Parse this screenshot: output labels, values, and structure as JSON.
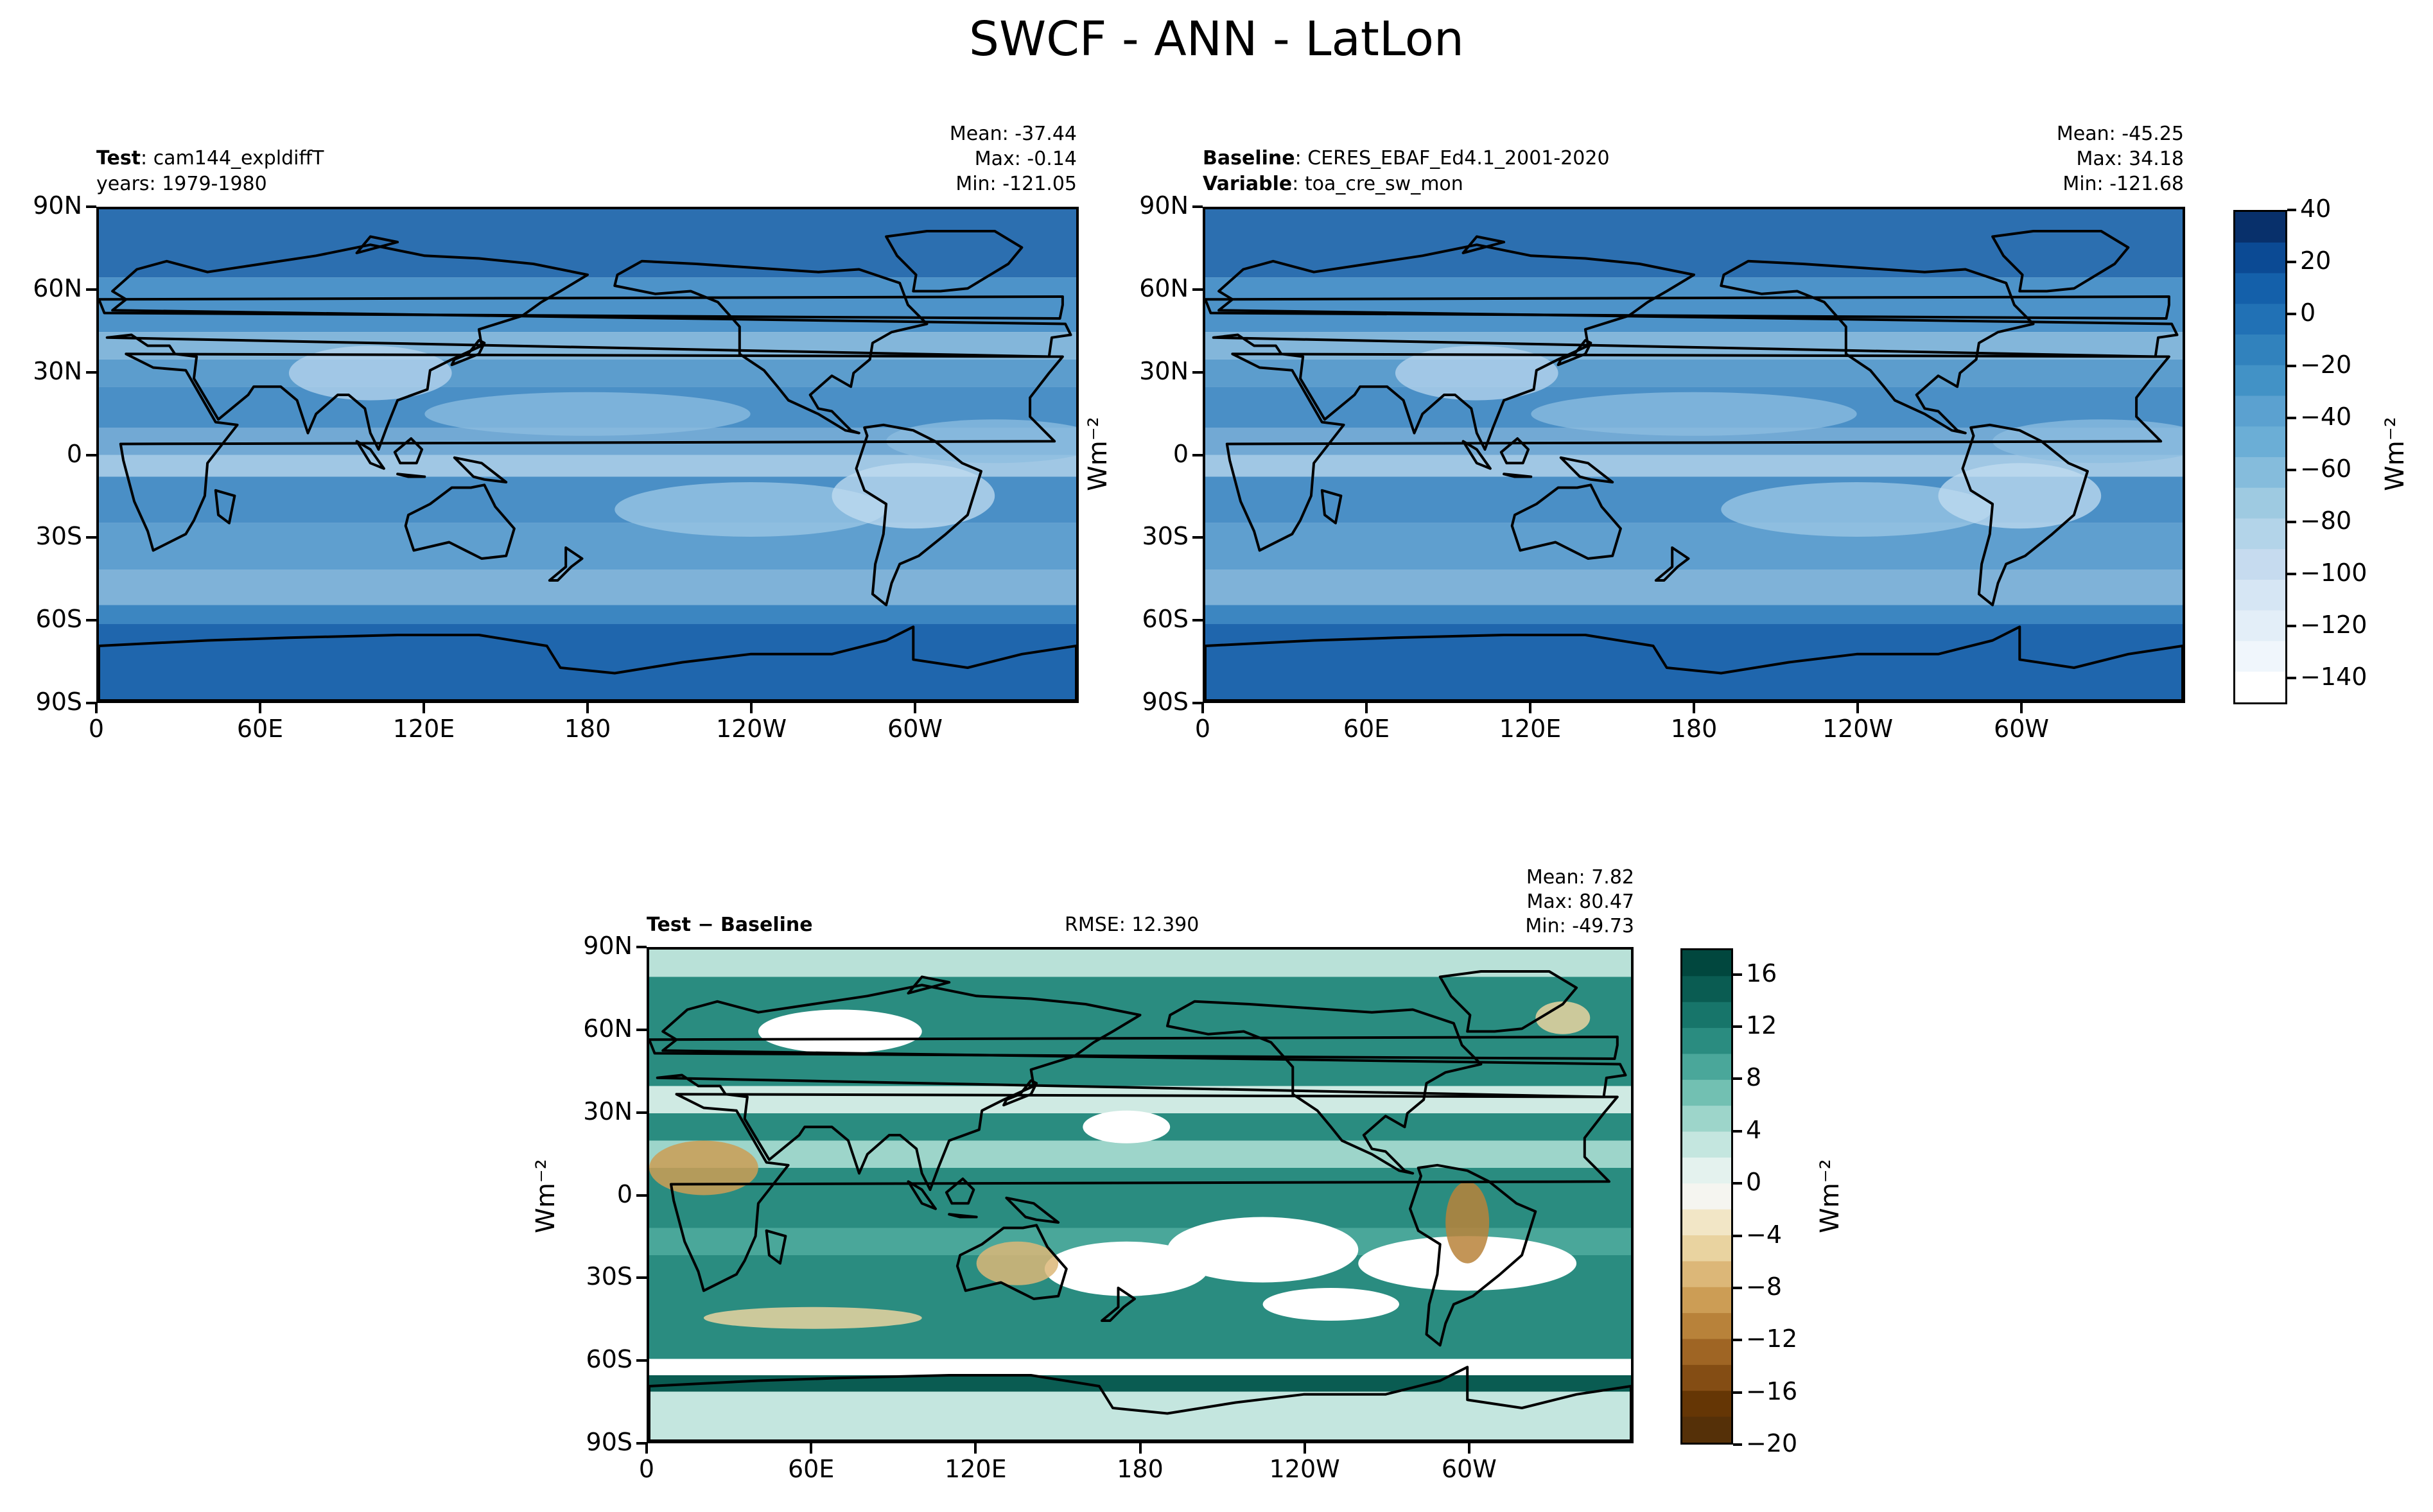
{
  "title": "SWCF - ANN - LatLon",
  "unit_label": "Wm⁻²",
  "x_ticks": [
    "0",
    "60E",
    "120E",
    "180",
    "120W",
    "60W"
  ],
  "y_ticks": [
    "90N",
    "60N",
    "30N",
    "0",
    "30S",
    "60S",
    "90S"
  ],
  "panels": {
    "test": {
      "label_bold": "Test",
      "label_value": "cam144_expldiffT",
      "line2": "years: 1979-1980",
      "mean": "Mean: -37.44",
      "max": "Max: -0.14",
      "min": "Min: -121.05"
    },
    "baseline": {
      "label_bold": "Baseline",
      "label_value": "CERES_EBAF_Ed4.1_2001-2020",
      "line2_bold": "Variable",
      "line2_value": "toa_cre_sw_mon",
      "mean": "Mean: -45.25",
      "max": "Max: 34.18",
      "min": "Min: -121.68"
    },
    "diff": {
      "label": "Test − Baseline",
      "rmse": "RMSE: 12.390",
      "mean": "Mean:  7.82",
      "max": "Max: 80.47",
      "min": "Min: -49.73"
    }
  },
  "colorbar_top": {
    "ticks": [
      "40",
      "20",
      "0",
      "−20",
      "−40",
      "−60",
      "−80",
      "−100",
      "−120",
      "−140"
    ],
    "colors": [
      "#08306b",
      "#0b4a94",
      "#1460aa",
      "#2171b5",
      "#3182bd",
      "#4292c6",
      "#5ba1d0",
      "#6baed6",
      "#85bcdc",
      "#9ecae1",
      "#b3d4e9",
      "#c6dbef",
      "#d6e6f4",
      "#e3eef8",
      "#f0f6fc",
      "#ffffff"
    ]
  },
  "colorbar_diff": {
    "ticks": [
      "16",
      "12",
      "8",
      "4",
      "0",
      "−4",
      "−8",
      "−12",
      "−16",
      "−20"
    ],
    "colors": [
      "#01473e",
      "#0a5c52",
      "#17756a",
      "#2a8c80",
      "#4aa79a",
      "#72c0b2",
      "#9dd5ca",
      "#c4e6df",
      "#e4f2ee",
      "#f5f5f0",
      "#f2e6c6",
      "#e9d3a0",
      "#dcb778",
      "#cc9d55",
      "#b8823a",
      "#9f6524",
      "#844d14",
      "#653605",
      "#553008"
    ]
  },
  "chart_data": [
    {
      "type": "heatmap",
      "title": "Test: cam144_expldiffT",
      "subtitle": "years: 1979-1980",
      "xlabel": "",
      "ylabel": "",
      "x_ticks": [
        "0",
        "60E",
        "120E",
        "180",
        "120W",
        "60W"
      ],
      "y_ticks": [
        "90N",
        "60N",
        "30N",
        "0",
        "30S",
        "60S",
        "90S"
      ],
      "color_range": [
        -150,
        40
      ],
      "stats": {
        "mean": -37.44,
        "max": -0.14,
        "min": -121.05
      },
      "colormap": "Blues (reversed)"
    },
    {
      "type": "heatmap",
      "title": "Baseline: CERES_EBAF_Ed4.1_2001-2020",
      "subtitle": "Variable: toa_cre_sw_mon",
      "xlabel": "",
      "ylabel": "Wm⁻²",
      "x_ticks": [
        "0",
        "60E",
        "120E",
        "180",
        "120W",
        "60W"
      ],
      "y_ticks": [
        "90N",
        "60N",
        "30N",
        "0",
        "30S",
        "60S",
        "90S"
      ],
      "color_range": [
        -150,
        40
      ],
      "stats": {
        "mean": -45.25,
        "max": 34.18,
        "min": -121.68
      },
      "colormap": "Blues (reversed)"
    },
    {
      "type": "heatmap",
      "title": "Test − Baseline",
      "xlabel": "",
      "ylabel": "Wm⁻²",
      "x_ticks": [
        "0",
        "60E",
        "120E",
        "180",
        "120W",
        "60W"
      ],
      "y_ticks": [
        "90N",
        "60N",
        "30N",
        "0",
        "30S",
        "60S",
        "90S"
      ],
      "color_range": [
        -20,
        18
      ],
      "stats": {
        "mean": 7.82,
        "max": 80.47,
        "min": -49.73,
        "rmse": 12.39
      },
      "colormap": "BrBG"
    }
  ]
}
